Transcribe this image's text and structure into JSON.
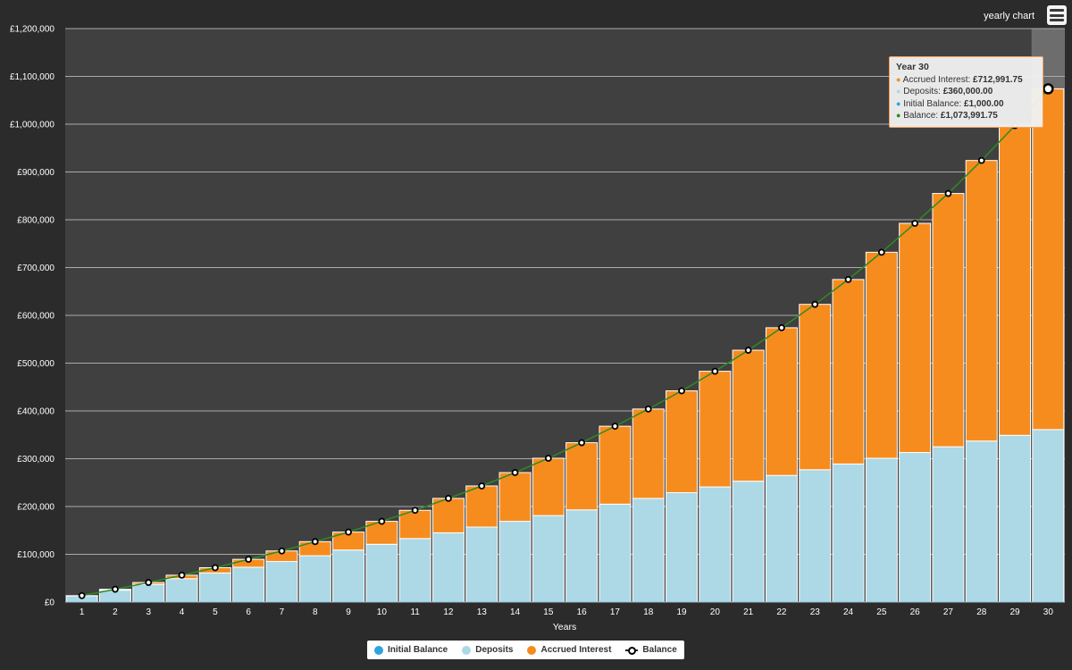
{
  "header": {
    "title": "yearly chart"
  },
  "colors": {
    "background": "#2b2b2b",
    "plot_background": "#404040",
    "initial_balance": "#2fa3de",
    "deposits": "#add8e6",
    "accrued_interest": "#f68c1e",
    "balance_line": "#2e8b22",
    "grid": "#aaaaaa",
    "highlight": "#6d6d6d"
  },
  "chart_data": {
    "type": "bar",
    "stacked": true,
    "xlabel": "Years",
    "ylabel": "",
    "ylim": [
      0,
      1200000
    ],
    "yticks": [
      "£0",
      "£100,000",
      "£200,000",
      "£300,000",
      "£400,000",
      "£500,000",
      "£600,000",
      "£700,000",
      "£800,000",
      "£900,000",
      "£1,000,000",
      "£1,100,000",
      "£1,200,000"
    ],
    "ytick_values": [
      0,
      100000,
      200000,
      300000,
      400000,
      500000,
      600000,
      700000,
      800000,
      900000,
      1000000,
      1100000,
      1200000
    ],
    "categories": [
      "1",
      "2",
      "3",
      "4",
      "5",
      "6",
      "7",
      "8",
      "9",
      "10",
      "11",
      "12",
      "13",
      "14",
      "15",
      "16",
      "17",
      "18",
      "19",
      "20",
      "21",
      "22",
      "23",
      "24",
      "25",
      "26",
      "27",
      "28",
      "29",
      "30"
    ],
    "series": [
      {
        "name": "Initial Balance",
        "values": [
          1000,
          1000,
          1000,
          1000,
          1000,
          1000,
          1000,
          1000,
          1000,
          1000,
          1000,
          1000,
          1000,
          1000,
          1000,
          1000,
          1000,
          1000,
          1000,
          1000,
          1000,
          1000,
          1000,
          1000,
          1000,
          1000,
          1000,
          1000,
          1000,
          1000
        ]
      },
      {
        "name": "Deposits",
        "values": [
          12000,
          24000,
          36000,
          48000,
          60000,
          72000,
          84000,
          96000,
          108000,
          120000,
          132000,
          144000,
          156000,
          168000,
          180000,
          192000,
          204000,
          216000,
          228000,
          240000,
          252000,
          264000,
          276000,
          288000,
          300000,
          312000,
          324000,
          336000,
          348000,
          360000
        ]
      },
      {
        "name": "Accrued Interest",
        "values": [
          500,
          1800,
          4000,
          7300,
          11000,
          16500,
          22000,
          29500,
          37500,
          48000,
          59000,
          72000,
          86000,
          102000,
          120000,
          140500,
          163000,
          187000,
          213000,
          242000,
          274000,
          309000,
          346000,
          386000,
          431000,
          479500,
          530000,
          587000,
          648000,
          712991.75
        ]
      },
      {
        "name": "Balance",
        "type": "line",
        "values": [
          13500,
          26800,
          41000,
          56300,
          72000,
          89500,
          107000,
          126500,
          146500,
          169000,
          192000,
          217000,
          243000,
          271000,
          301000,
          333500,
          368000,
          404000,
          442000,
          483000,
          527000,
          574000,
          623000,
          675000,
          732000,
          792500,
          855000,
          924000,
          997000,
          1073991.75
        ]
      }
    ],
    "legend": {
      "position": "bottom-center",
      "items": [
        "Initial Balance",
        "Deposits",
        "Accrued Interest",
        "Balance"
      ]
    },
    "highlighted_category": "30"
  },
  "tooltip": {
    "title": "Year 30",
    "rows": [
      {
        "label": "Accrued Interest:",
        "value": "£712,991.75",
        "color": "#f68c1e"
      },
      {
        "label": "Deposits:",
        "value": "£360,000.00",
        "color": "#add8e6"
      },
      {
        "label": "Initial Balance:",
        "value": "£1,000.00",
        "color": "#2fa3de"
      },
      {
        "label": "Balance:",
        "value": "£1,073,991.75",
        "color": "#2e8b22"
      }
    ]
  }
}
